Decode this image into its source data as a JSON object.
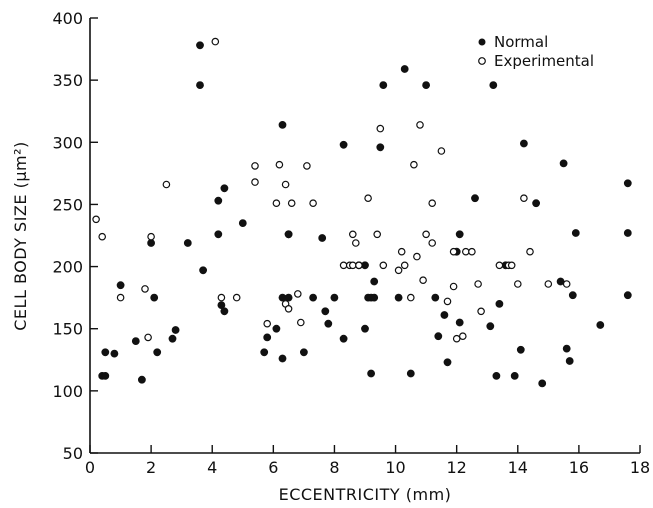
{
  "chart_data": {
    "type": "scatter",
    "title": "",
    "xlabel": "ECCENTRICITY (mm)",
    "ylabel": "CELL BODY SIZE (µm²)",
    "xlim": [
      0,
      18
    ],
    "ylim": [
      50,
      400
    ],
    "x_ticks": [
      0,
      2,
      4,
      6,
      8,
      10,
      12,
      14,
      16,
      18
    ],
    "y_ticks": [
      50,
      100,
      150,
      200,
      250,
      300,
      350,
      400
    ],
    "grid": false,
    "legend_position": "top-right",
    "series": [
      {
        "name": "Normal",
        "marker": "filled-circle",
        "color": "#111111",
        "points": [
          [
            0.4,
            112
          ],
          [
            0.5,
            112
          ],
          [
            0.5,
            131
          ],
          [
            0.8,
            130
          ],
          [
            1.0,
            185
          ],
          [
            1.5,
            140
          ],
          [
            1.7,
            109
          ],
          [
            2.0,
            219
          ],
          [
            2.1,
            175
          ],
          [
            2.2,
            131
          ],
          [
            2.7,
            142
          ],
          [
            2.8,
            149
          ],
          [
            3.2,
            219
          ],
          [
            3.6,
            378
          ],
          [
            3.6,
            346
          ],
          [
            3.7,
            197
          ],
          [
            4.2,
            226
          ],
          [
            4.2,
            253
          ],
          [
            4.3,
            169
          ],
          [
            4.4,
            164
          ],
          [
            4.4,
            263
          ],
          [
            5.0,
            235
          ],
          [
            5.7,
            131
          ],
          [
            5.8,
            143
          ],
          [
            6.1,
            150
          ],
          [
            6.3,
            126
          ],
          [
            6.3,
            175
          ],
          [
            6.3,
            314
          ],
          [
            6.5,
            175
          ],
          [
            6.5,
            226
          ],
          [
            6.5,
            226
          ],
          [
            7.0,
            131
          ],
          [
            7.3,
            175
          ],
          [
            7.6,
            223
          ],
          [
            7.7,
            164
          ],
          [
            7.8,
            154
          ],
          [
            8.0,
            175
          ],
          [
            8.3,
            142
          ],
          [
            8.3,
            298
          ],
          [
            8.8,
            201
          ],
          [
            9.0,
            201
          ],
          [
            9.0,
            150
          ],
          [
            9.1,
            175
          ],
          [
            9.2,
            175
          ],
          [
            9.2,
            114
          ],
          [
            9.3,
            175
          ],
          [
            9.3,
            188
          ],
          [
            9.5,
            296
          ],
          [
            9.6,
            346
          ],
          [
            10.1,
            175
          ],
          [
            10.3,
            359
          ],
          [
            10.5,
            114
          ],
          [
            11.0,
            346
          ],
          [
            11.3,
            175
          ],
          [
            11.4,
            144
          ],
          [
            11.6,
            161
          ],
          [
            11.7,
            123
          ],
          [
            12.0,
            212
          ],
          [
            12.1,
            155
          ],
          [
            12.1,
            226
          ],
          [
            12.6,
            255
          ],
          [
            13.1,
            152
          ],
          [
            13.2,
            346
          ],
          [
            13.3,
            112
          ],
          [
            13.4,
            170
          ],
          [
            13.6,
            201
          ],
          [
            13.9,
            112
          ],
          [
            14.1,
            133
          ],
          [
            14.2,
            299
          ],
          [
            14.6,
            251
          ],
          [
            14.8,
            106
          ],
          [
            15.4,
            188
          ],
          [
            15.5,
            283
          ],
          [
            15.6,
            134
          ],
          [
            15.7,
            124
          ],
          [
            15.8,
            177
          ],
          [
            15.9,
            227
          ],
          [
            16.7,
            153
          ],
          [
            17.6,
            267
          ],
          [
            17.6,
            227
          ],
          [
            17.6,
            177
          ]
        ]
      },
      {
        "name": "Experimental",
        "marker": "open-circle",
        "color": "#111111",
        "points": [
          [
            0.2,
            238
          ],
          [
            0.4,
            224
          ],
          [
            1.0,
            175
          ],
          [
            1.8,
            182
          ],
          [
            1.9,
            143
          ],
          [
            2.0,
            224
          ],
          [
            2.5,
            266
          ],
          [
            4.1,
            381
          ],
          [
            4.3,
            175
          ],
          [
            4.8,
            175
          ],
          [
            5.4,
            281
          ],
          [
            5.4,
            268
          ],
          [
            5.8,
            154
          ],
          [
            6.1,
            251
          ],
          [
            6.2,
            282
          ],
          [
            6.4,
            170
          ],
          [
            6.4,
            266
          ],
          [
            6.5,
            166
          ],
          [
            6.6,
            251
          ],
          [
            6.8,
            178
          ],
          [
            6.9,
            155
          ],
          [
            7.1,
            281
          ],
          [
            7.3,
            251
          ],
          [
            8.3,
            201
          ],
          [
            8.5,
            201
          ],
          [
            8.6,
            226
          ],
          [
            8.6,
            201
          ],
          [
            8.7,
            219
          ],
          [
            8.8,
            201
          ],
          [
            9.1,
            255
          ],
          [
            9.4,
            226
          ],
          [
            9.5,
            311
          ],
          [
            9.6,
            201
          ],
          [
            10.1,
            197
          ],
          [
            10.2,
            212
          ],
          [
            10.3,
            201
          ],
          [
            10.5,
            175
          ],
          [
            10.6,
            282
          ],
          [
            10.7,
            208
          ],
          [
            10.8,
            314
          ],
          [
            10.9,
            189
          ],
          [
            11.0,
            226
          ],
          [
            11.2,
            251
          ],
          [
            11.2,
            219
          ],
          [
            11.5,
            293
          ],
          [
            11.7,
            172
          ],
          [
            11.9,
            212
          ],
          [
            11.9,
            184
          ],
          [
            12.0,
            142
          ],
          [
            12.2,
            144
          ],
          [
            12.3,
            212
          ],
          [
            12.5,
            212
          ],
          [
            12.7,
            186
          ],
          [
            12.8,
            164
          ],
          [
            13.4,
            201
          ],
          [
            13.7,
            201
          ],
          [
            13.8,
            201
          ],
          [
            14.0,
            186
          ],
          [
            14.2,
            255
          ],
          [
            14.4,
            212
          ],
          [
            15.0,
            186
          ],
          [
            15.6,
            186
          ]
        ]
      }
    ]
  }
}
